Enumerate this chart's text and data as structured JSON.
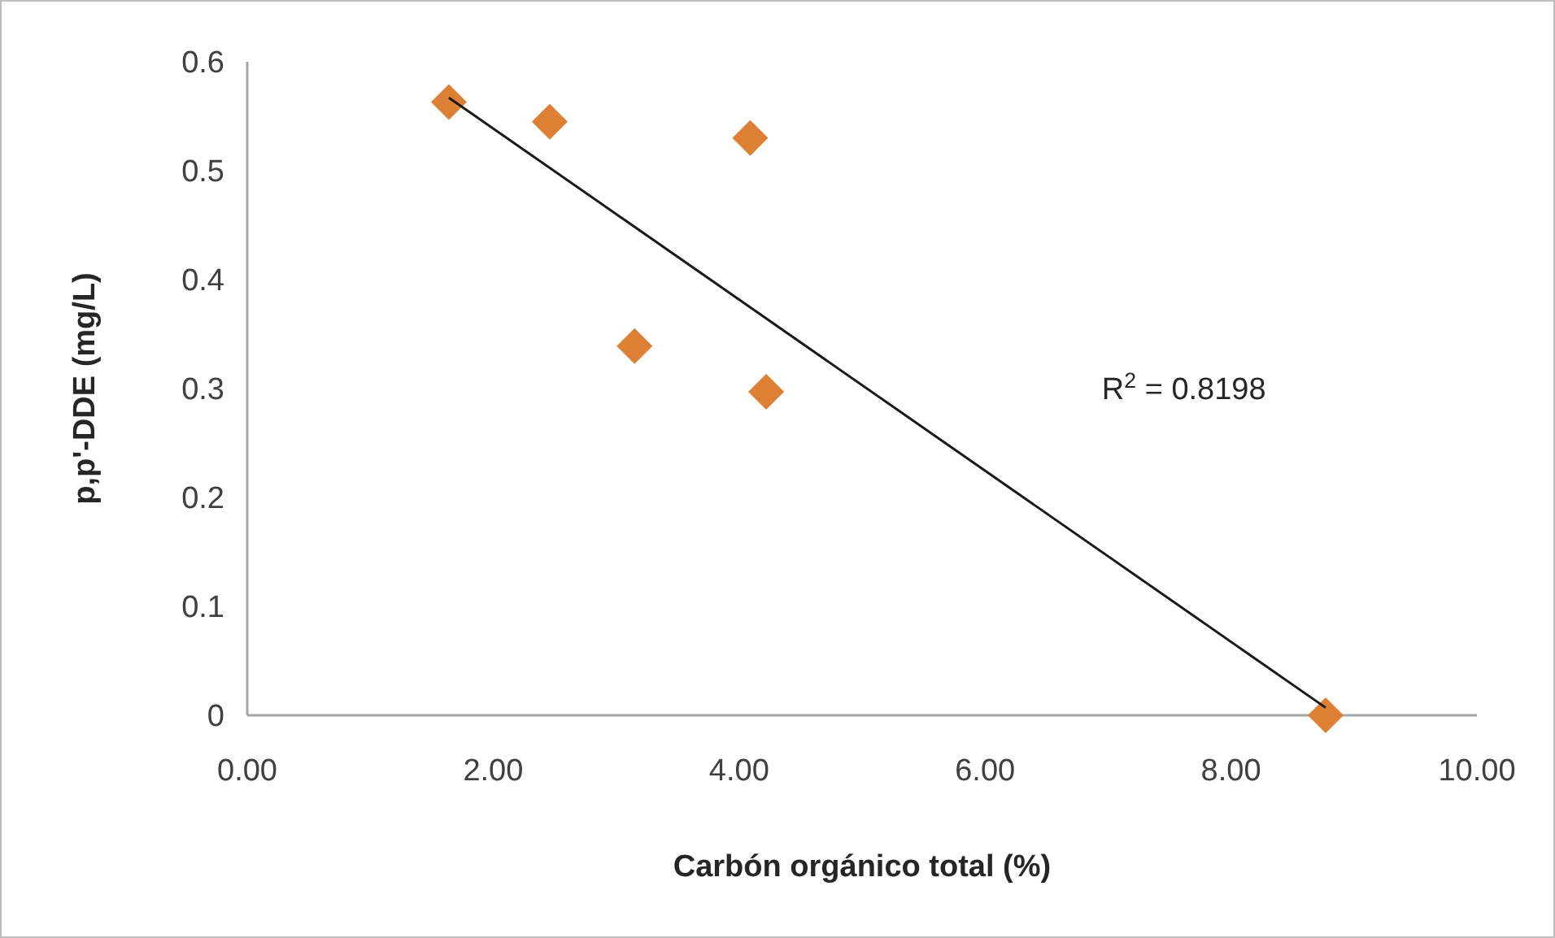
{
  "chart_data": {
    "type": "scatter",
    "xlabel": "Carbón orgánico total (%)",
    "ylabel": "p,p'-DDE (mg/L)",
    "xlim": [
      0,
      10
    ],
    "xticks": [
      {
        "value": 0,
        "label": "0.00"
      },
      {
        "value": 2,
        "label": "2.00"
      },
      {
        "value": 4,
        "label": "4.00"
      },
      {
        "value": 6,
        "label": "6.00"
      },
      {
        "value": 8,
        "label": "8.00"
      },
      {
        "value": 10,
        "label": "10.00"
      }
    ],
    "ylim": [
      0,
      0.6
    ],
    "yticks": [
      0,
      0.1,
      0.2,
      0.3,
      0.4,
      0.5,
      0.6
    ],
    "grid": false,
    "annotations": [
      "R$^{2}$ = 0.8198"
    ],
    "series": [
      {
        "color": "#dd8033",
        "marker": "diamond",
        "x": [
          1.64,
          2.46,
          4.09,
          3.15,
          4.22,
          8.77
        ],
        "values": [
          0.563,
          0.545,
          0.53,
          0.339,
          0.297,
          0
        ]
      },
      {
        "type": "line",
        "color": "#1a1a1a",
        "line_style": "solid",
        "marker": "none",
        "x": [
          1.64,
          8.77
        ],
        "values": [
          0.567,
          0.007
        ]
      }
    ]
  }
}
